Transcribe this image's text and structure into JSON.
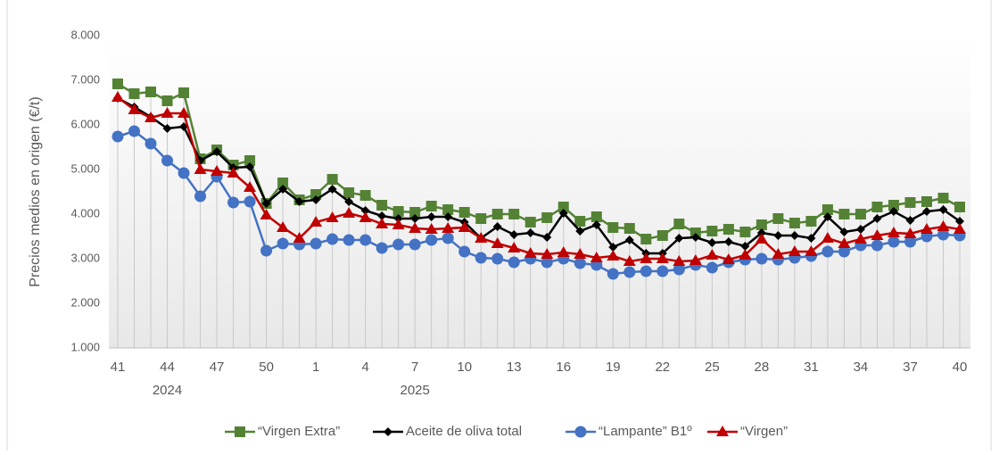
{
  "chart_data": {
    "type": "line",
    "y_label": "Precios medios  en origen (€/t)",
    "categories": [
      "41",
      null,
      null,
      "44",
      null,
      null,
      "47",
      null,
      null,
      "50",
      null,
      null,
      "1",
      null,
      null,
      "4",
      null,
      null,
      "7",
      null,
      null,
      "10",
      null,
      null,
      "13",
      null,
      null,
      "16",
      null,
      null,
      "19",
      null,
      null,
      "22",
      null,
      null,
      "25",
      null,
      null,
      "28",
      null,
      null,
      "31",
      null,
      null,
      "34",
      null,
      null,
      "37",
      null,
      null,
      "40"
    ],
    "year_labels": [
      "2024",
      "2025"
    ],
    "ylim": [
      1000,
      8000
    ],
    "yticks": [
      {
        "value": 1000,
        "label": "1.000"
      },
      {
        "value": 2000,
        "label": "2.000"
      },
      {
        "value": 3000,
        "label": "3.000"
      },
      {
        "value": 4000,
        "label": "4.000"
      },
      {
        "value": 5000,
        "label": "5.000"
      },
      {
        "value": 6000,
        "label": "6.000"
      },
      {
        "value": 7000,
        "label": "7.000"
      },
      {
        "value": 8000,
        "label": "8.000"
      }
    ],
    "series": [
      {
        "name": "“Virgen Extra”",
        "color": "#548235",
        "marker": "square",
        "values": [
          6920,
          6700,
          6740,
          6540,
          6720,
          5240,
          5440,
          5100,
          5200,
          4240,
          4700,
          4320,
          4440,
          4780,
          4480,
          4420,
          4200,
          4060,
          4040,
          4180,
          4100,
          4040,
          3900,
          4000,
          4000,
          3820,
          3920,
          4160,
          3840,
          3940,
          3700,
          3680,
          3440,
          3520,
          3780,
          3580,
          3620,
          3660,
          3600,
          3760,
          3900,
          3800,
          3840,
          4100,
          4000,
          4000,
          4160,
          4200,
          4260,
          4280,
          4360,
          4160
        ]
      },
      {
        "name": "Aceite de oliva total",
        "color": "#000000",
        "marker": "diamond",
        "values": [
          6600,
          6400,
          6180,
          5920,
          5960,
          5200,
          5400,
          5040,
          5060,
          4240,
          4560,
          4280,
          4320,
          4560,
          4280,
          4080,
          3960,
          3900,
          3900,
          3940,
          3940,
          3820,
          3460,
          3720,
          3540,
          3580,
          3480,
          4020,
          3620,
          3760,
          3260,
          3420,
          3120,
          3120,
          3460,
          3480,
          3360,
          3380,
          3280,
          3580,
          3520,
          3520,
          3460,
          3940,
          3600,
          3660,
          3900,
          4060,
          3860,
          4060,
          4100,
          3840
        ]
      },
      {
        "name": "“Lampante” B1º",
        "color": "#4472c4",
        "marker": "circle",
        "values": [
          5740,
          5860,
          5580,
          5200,
          4920,
          4400,
          4840,
          4260,
          4280,
          3180,
          3340,
          3320,
          3340,
          3440,
          3420,
          3420,
          3240,
          3320,
          3320,
          3420,
          3460,
          3160,
          3020,
          3000,
          2920,
          3000,
          2920,
          3000,
          2900,
          2860,
          2660,
          2700,
          2720,
          2720,
          2760,
          2860,
          2800,
          2920,
          2980,
          3000,
          2980,
          3020,
          3060,
          3160,
          3160,
          3300,
          3300,
          3380,
          3380,
          3500,
          3540,
          3520
        ]
      },
      {
        "name": "“Virgen”",
        "color": "#c00000",
        "marker": "triangle",
        "values": [
          6620,
          6340,
          6160,
          6260,
          6260,
          5000,
          4960,
          4920,
          4600,
          3980,
          3700,
          3460,
          3820,
          3920,
          4020,
          3920,
          3780,
          3760,
          3680,
          3660,
          3680,
          3700,
          3460,
          3340,
          3240,
          3120,
          3100,
          3140,
          3100,
          3020,
          3060,
          2940,
          3000,
          3000,
          2940,
          2960,
          3080,
          2980,
          3080,
          3440,
          3100,
          3160,
          3160,
          3460,
          3340,
          3440,
          3520,
          3580,
          3560,
          3660,
          3720,
          3660
        ]
      }
    ]
  }
}
